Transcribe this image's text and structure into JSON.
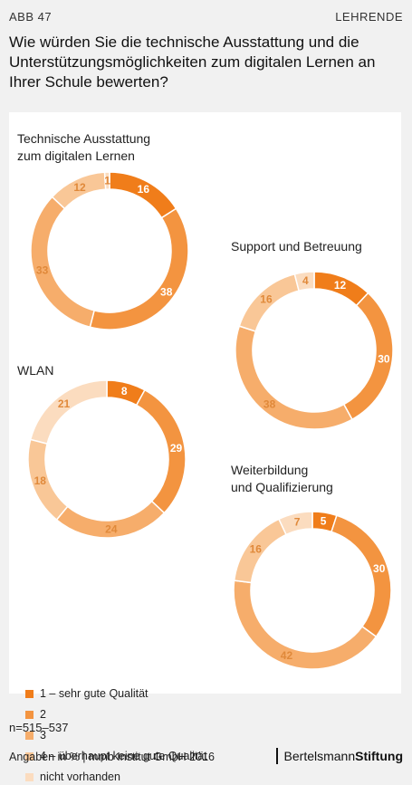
{
  "header": {
    "figure_label": "ABB 47",
    "audience": "LEHRENDE",
    "title": "Wie würden Sie die technische Ausstattung und die Unterstützungsmöglichkeiten zum digitalen Lernen an Ihrer Schule bewerten?"
  },
  "chart_data": [
    {
      "type": "pie",
      "title": "Technische Ausstattung zum digitalen Lernen",
      "title_lines": [
        "Technische Ausstattung",
        "zum digitalen Lernen"
      ],
      "categories": [
        "1 – sehr gute Qualität",
        "2",
        "3",
        "4 – überhaupt keine gute Qualität",
        "nicht vorhanden"
      ],
      "values": [
        16,
        38,
        33,
        12,
        1
      ]
    },
    {
      "type": "pie",
      "title": "Support und Betreuung",
      "title_lines": [
        "Support und Betreuung"
      ],
      "categories": [
        "1 – sehr gute Qualität",
        "2",
        "3",
        "4 – überhaupt keine gute Qualität",
        "nicht vorhanden"
      ],
      "values": [
        12,
        30,
        38,
        16,
        4
      ]
    },
    {
      "type": "pie",
      "title": "WLAN",
      "title_lines": [
        "WLAN"
      ],
      "categories": [
        "1 – sehr gute Qualität",
        "2",
        "3",
        "4 – überhaupt keine gute Qualität",
        "nicht vorhanden"
      ],
      "values": [
        8,
        29,
        24,
        18,
        21
      ]
    },
    {
      "type": "pie",
      "title": "Weiterbildung und Qualifizierung",
      "title_lines": [
        "Weiterbildung",
        "und Qualifizierung"
      ],
      "categories": [
        "1 – sehr gute Qualität",
        "2",
        "3",
        "4 – überhaupt keine gute Qualität",
        "nicht vorhanden"
      ],
      "values": [
        5,
        30,
        42,
        16,
        7
      ]
    }
  ],
  "legend": [
    {
      "label": "1 – sehr gute Qualität",
      "color": "#f07d1a"
    },
    {
      "label": "2",
      "color": "#f39440"
    },
    {
      "label": "3",
      "color": "#f6ad6b"
    },
    {
      "label": "4 – überhaupt keine gute Qualität",
      "color": "#f9c797"
    },
    {
      "label": "nicht vorhanden",
      "color": "#fbdcbf"
    }
  ],
  "footer": {
    "sample": "n=515–537",
    "source": "Angaben in % | mmb Institut GmbH 2016",
    "brand_light": "Bertelsmann",
    "brand_bold": "Stiftung"
  }
}
